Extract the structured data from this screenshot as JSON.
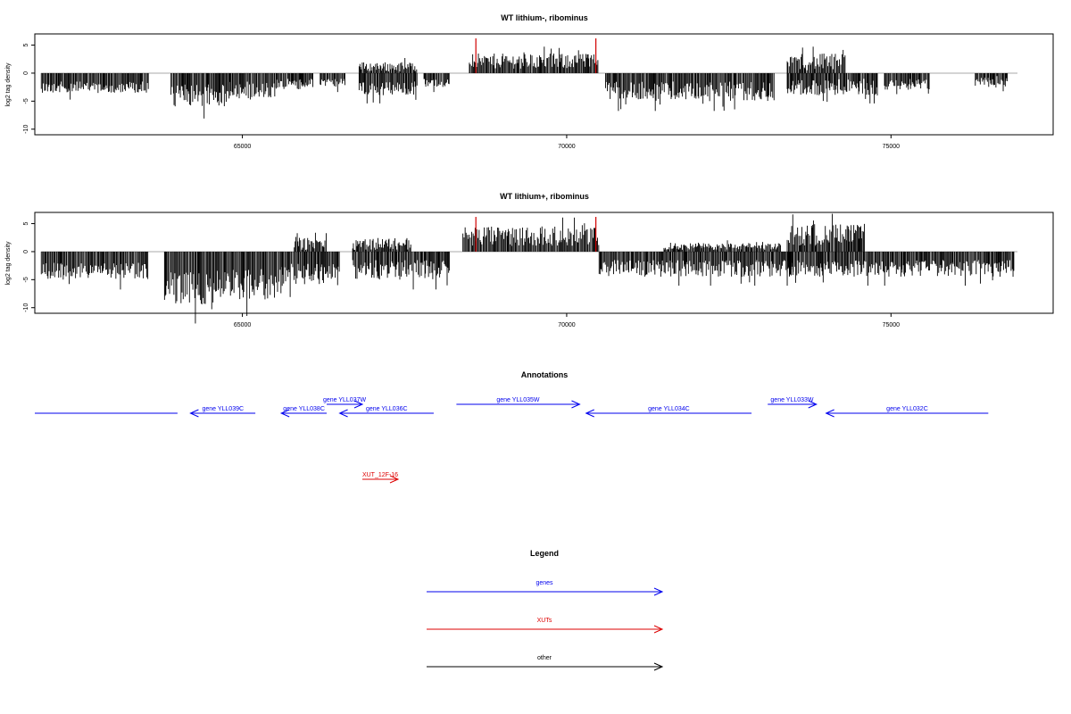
{
  "colors": {
    "axis": "#000000",
    "bar": "#000000",
    "zero": "#aaaaaa",
    "peak": "#d00000",
    "gene": "#0000ee",
    "xut": "#dd0000",
    "other": "#000000"
  },
  "chart_data": [
    {
      "type": "bar",
      "title": "WT lithium-, ribominus",
      "ylabel": "log2 tag density",
      "xlim": [
        61800,
        77500
      ],
      "ylim": [
        -11,
        7
      ],
      "yticks": [
        -10,
        -5,
        0,
        5
      ],
      "xticks": [
        65000,
        70000,
        75000
      ],
      "regions": [
        {
          "x0": 61900,
          "x1": 63550,
          "sign": -1,
          "vmin": 1.5,
          "vmax": 3.5
        },
        {
          "x0": 63900,
          "x1": 64800,
          "sign": -1,
          "vmin": 2.0,
          "vmax": 6.0
        },
        {
          "x0": 64800,
          "x1": 65500,
          "sign": -1,
          "vmin": 1.5,
          "vmax": 4.5
        },
        {
          "x0": 65500,
          "x1": 66100,
          "sign": -1,
          "vmin": 1.0,
          "vmax": 3.0
        },
        {
          "x0": 66200,
          "x1": 66600,
          "sign": -1,
          "vmin": 1.0,
          "vmax": 2.5
        },
        {
          "x0": 66800,
          "x1": 67700,
          "sign": -1,
          "vmin": 1.5,
          "vmax": 4.0
        },
        {
          "x0": 66800,
          "x1": 67700,
          "sign": 1,
          "vmin": 0.3,
          "vmax": 2.0
        },
        {
          "x0": 67800,
          "x1": 68200,
          "sign": -1,
          "vmin": 1.0,
          "vmax": 2.5
        },
        {
          "x0": 68500,
          "x1": 70500,
          "sign": 1,
          "vmin": 0.8,
          "vmax": 3.5
        },
        {
          "x0": 70600,
          "x1": 73200,
          "sign": -1,
          "vmin": 1.5,
          "vmax": 5.0
        },
        {
          "x0": 73400,
          "x1": 73600,
          "sign": 1,
          "vmin": 1.0,
          "vmax": 3.5
        },
        {
          "x0": 73600,
          "x1": 74300,
          "sign": 1,
          "vmin": 0.5,
          "vmax": 3.5
        },
        {
          "x0": 73400,
          "x1": 74800,
          "sign": -1,
          "vmin": 1.0,
          "vmax": 4.0
        },
        {
          "x0": 74900,
          "x1": 75600,
          "sign": -1,
          "vmin": 1.0,
          "vmax": 3.0
        },
        {
          "x0": 76300,
          "x1": 76800,
          "sign": -1,
          "vmin": 0.5,
          "vmax": 2.5
        }
      ],
      "peaks": [
        {
          "x": 68600,
          "y": 6.2
        },
        {
          "x": 70450,
          "y": 6.2
        }
      ]
    },
    {
      "type": "bar",
      "title": "WT lithium+, ribominus",
      "ylabel": "log2 tag density",
      "xlim": [
        61800,
        77500
      ],
      "ylim": [
        -11,
        7
      ],
      "yticks": [
        -10,
        -5,
        0,
        5
      ],
      "xticks": [
        65000,
        70000,
        75000
      ],
      "regions": [
        {
          "x0": 61900,
          "x1": 63550,
          "sign": -1,
          "vmin": 2.0,
          "vmax": 5.0
        },
        {
          "x0": 63800,
          "x1": 64600,
          "sign": -1,
          "vmin": 3.0,
          "vmax": 9.5
        },
        {
          "x0": 64600,
          "x1": 65600,
          "sign": -1,
          "vmin": 3.0,
          "vmax": 8.5
        },
        {
          "x0": 65600,
          "x1": 66500,
          "sign": -1,
          "vmin": 2.0,
          "vmax": 6.0
        },
        {
          "x0": 65800,
          "x1": 66300,
          "sign": 1,
          "vmin": 0.3,
          "vmax": 2.5
        },
        {
          "x0": 66700,
          "x1": 68200,
          "sign": -1,
          "vmin": 1.5,
          "vmax": 5.0
        },
        {
          "x0": 66700,
          "x1": 67600,
          "sign": 1,
          "vmin": 0.3,
          "vmax": 2.5
        },
        {
          "x0": 68400,
          "x1": 70500,
          "sign": 1,
          "vmin": 1.0,
          "vmax": 4.5
        },
        {
          "x0": 70500,
          "x1": 73500,
          "sign": -1,
          "vmin": 1.5,
          "vmax": 4.5
        },
        {
          "x0": 71500,
          "x1": 73300,
          "sign": 1,
          "vmin": 0.3,
          "vmax": 1.5
        },
        {
          "x0": 73400,
          "x1": 74600,
          "sign": 1,
          "vmin": 1.0,
          "vmax": 5.0
        },
        {
          "x0": 73400,
          "x1": 76900,
          "sign": -1,
          "vmin": 1.5,
          "vmax": 4.5
        }
      ],
      "peaks": [
        {
          "x": 68600,
          "y": 6.2
        },
        {
          "x": 70450,
          "y": 6.2
        }
      ]
    }
  ],
  "annotations": {
    "title": "Annotations",
    "genes": [
      {
        "label": "",
        "start": 61800,
        "end": 64000,
        "dir": "none",
        "row": 0
      },
      {
        "label": "gene YLL039C",
        "start": 64200,
        "end": 65200,
        "dir": "left",
        "row": 0
      },
      {
        "label": "gene YLL038C",
        "start": 65600,
        "end": 66300,
        "dir": "left",
        "row": 0
      },
      {
        "label": "gene YLL037W",
        "start": 66300,
        "end": 66850,
        "dir": "right",
        "row": 1
      },
      {
        "label": "gene YLL036C",
        "start": 66500,
        "end": 67950,
        "dir": "left",
        "row": 0
      },
      {
        "label": "gene YLL035W",
        "start": 68300,
        "end": 70200,
        "dir": "right",
        "row": 1
      },
      {
        "label": "gene YLL034C",
        "start": 70300,
        "end": 72850,
        "dir": "left",
        "row": 0
      },
      {
        "label": "gene YLL033W",
        "start": 73100,
        "end": 73850,
        "dir": "right",
        "row": 1
      },
      {
        "label": "gene YLL032C",
        "start": 74000,
        "end": 76500,
        "dir": "left",
        "row": 0
      }
    ],
    "xuts": [
      {
        "label": "XUT_12F-16",
        "start": 66850,
        "end": 67400,
        "dir": "right"
      }
    ]
  },
  "legend": {
    "title": "Legend",
    "items": [
      {
        "label": "genes",
        "color": "#0000ee"
      },
      {
        "label": "XUTs",
        "color": "#dd0000"
      },
      {
        "label": "other",
        "color": "#000000"
      }
    ]
  }
}
